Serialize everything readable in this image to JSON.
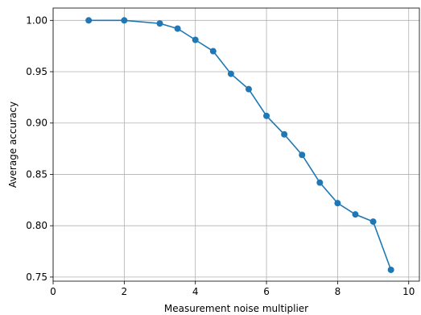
{
  "chart_data": {
    "type": "line",
    "title": "",
    "xlabel": "Measurement noise multiplier",
    "ylabel": "Average accuracy",
    "xlim": [
      0,
      10.3
    ],
    "ylim": [
      0.746,
      1.012
    ],
    "xticks": [
      0,
      2,
      4,
      6,
      8,
      10
    ],
    "yticks": [
      0.75,
      0.8,
      0.85,
      0.9,
      0.95,
      1.0
    ],
    "grid": true,
    "series": [
      {
        "x": [
          1,
          2,
          3,
          3.5,
          4,
          4.5,
          5,
          5.5,
          6,
          6.5,
          7,
          7.5,
          8,
          8.5,
          9,
          9.5
        ],
        "y": [
          1.0,
          1.0,
          0.997,
          0.992,
          0.981,
          0.97,
          0.948,
          0.933,
          0.907,
          0.889,
          0.869,
          0.842,
          0.822,
          0.811,
          0.804,
          0.757
        ]
      }
    ],
    "colors": {
      "series": "#1f77b4"
    }
  }
}
